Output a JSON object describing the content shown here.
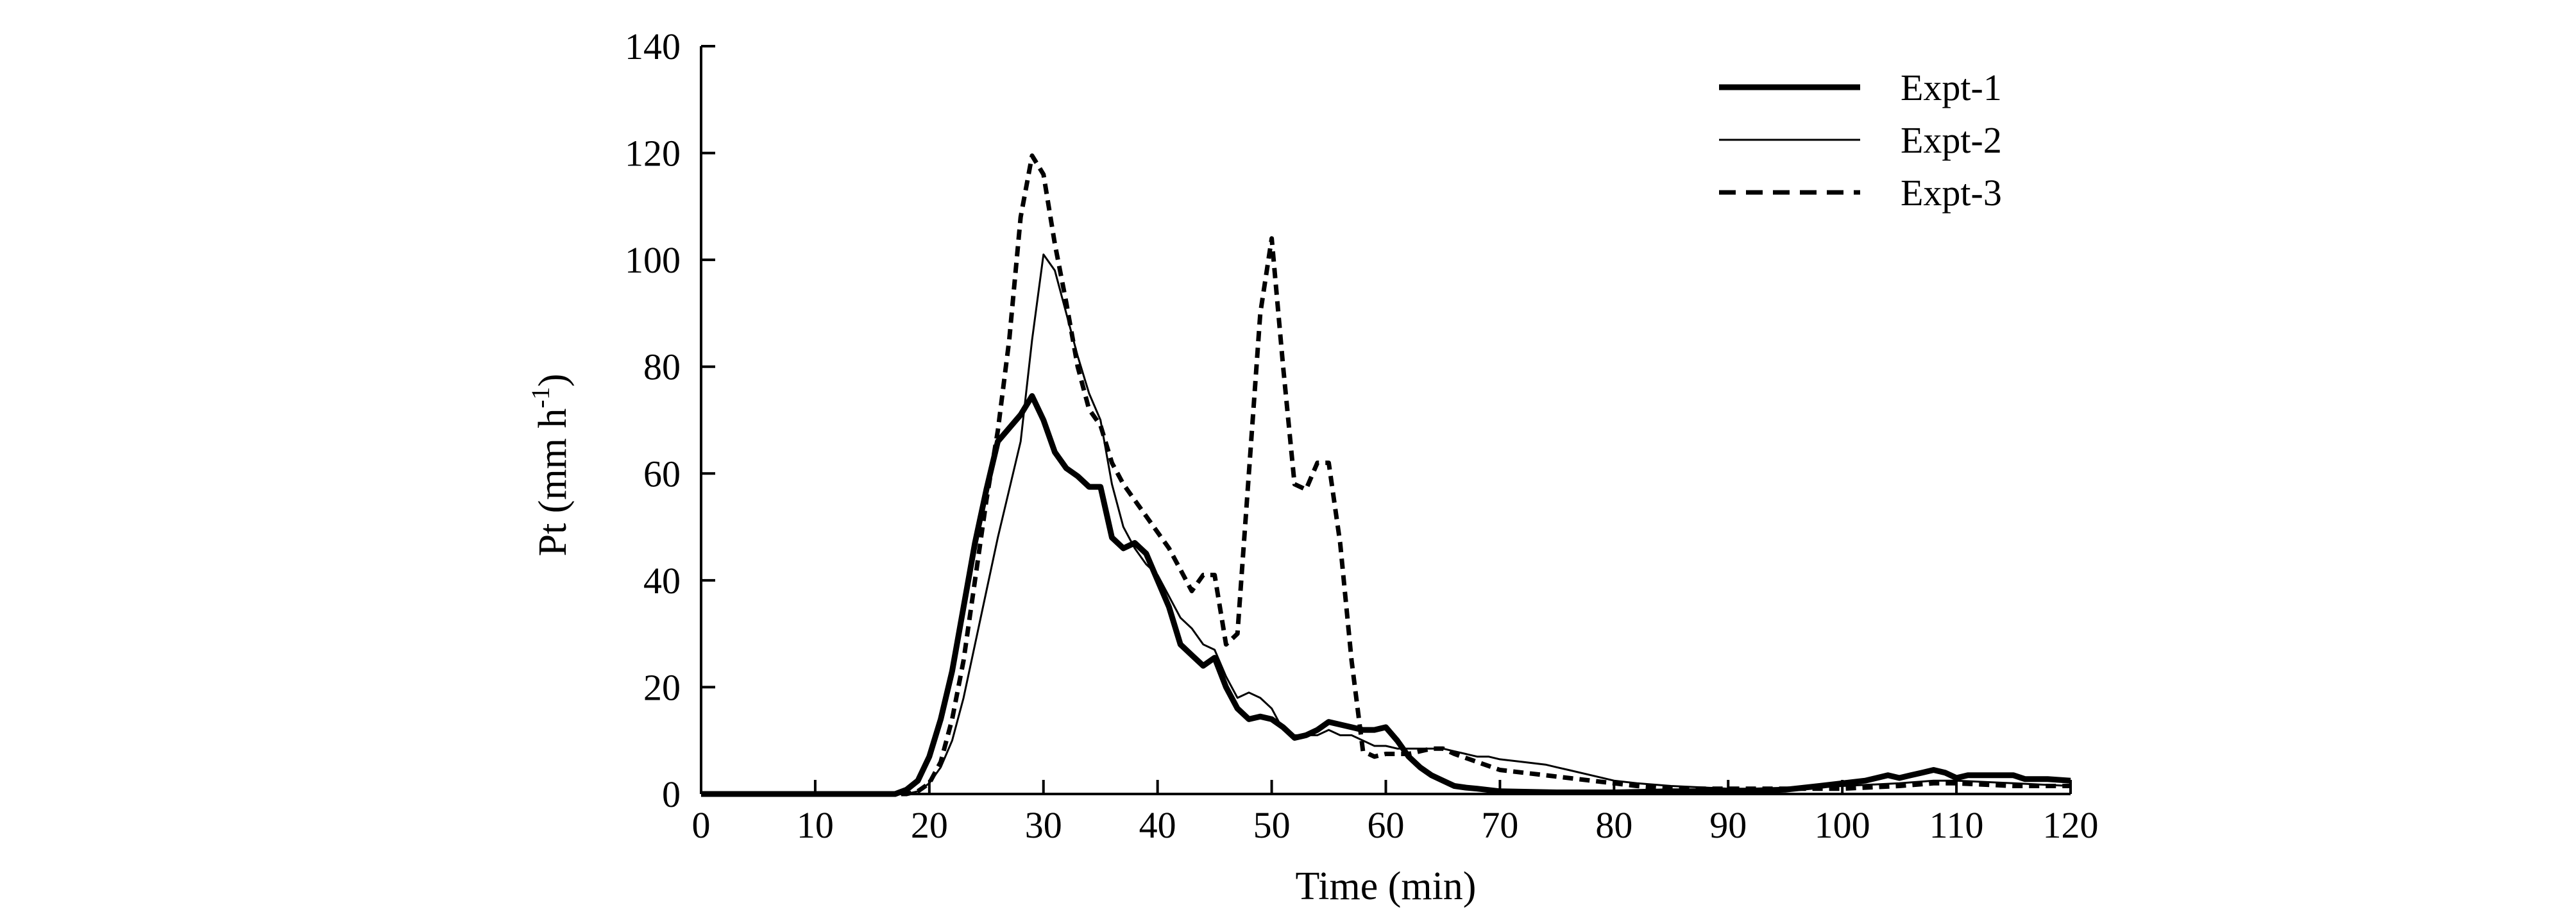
{
  "chart_data": {
    "type": "line",
    "xlabel": "Time (min)",
    "ylabel": {
      "main": "Pt (mm h",
      "sup": "-1",
      "close": ")"
    },
    "xlim": [
      0,
      120
    ],
    "ylim": [
      0,
      140
    ],
    "xticks": [
      "0",
      "10",
      "20",
      "30",
      "40",
      "50",
      "60",
      "70",
      "80",
      "90",
      "100",
      "110",
      "120"
    ],
    "yticks": [
      "0",
      "20",
      "40",
      "60",
      "80",
      "100",
      "120",
      "140"
    ],
    "grid": false,
    "legend_position": "top-right",
    "series": [
      {
        "name": "Expt-1",
        "style": "thick-solid",
        "color": "#000000",
        "points": [
          [
            0,
            0
          ],
          [
            17,
            0
          ],
          [
            18,
            0.8
          ],
          [
            19,
            2.5
          ],
          [
            20,
            7
          ],
          [
            21,
            14
          ],
          [
            22,
            23
          ],
          [
            23,
            35
          ],
          [
            24,
            47
          ],
          [
            25,
            57
          ],
          [
            26,
            66
          ],
          [
            27,
            68.5
          ],
          [
            28,
            71
          ],
          [
            29,
            74.5
          ],
          [
            30,
            70
          ],
          [
            31,
            64
          ],
          [
            32,
            61
          ],
          [
            33,
            59.5
          ],
          [
            34,
            57.5
          ],
          [
            35,
            57.5
          ],
          [
            36,
            48
          ],
          [
            37,
            46
          ],
          [
            38,
            47
          ],
          [
            39,
            45
          ],
          [
            40,
            40
          ],
          [
            41,
            35
          ],
          [
            42,
            28
          ],
          [
            43,
            26
          ],
          [
            44,
            24
          ],
          [
            45,
            25.5
          ],
          [
            46,
            20
          ],
          [
            47,
            16
          ],
          [
            48,
            14
          ],
          [
            49,
            14.5
          ],
          [
            50,
            14
          ],
          [
            51,
            12.5
          ],
          [
            52,
            10.5
          ],
          [
            53,
            11
          ],
          [
            54,
            12
          ],
          [
            55,
            13.5
          ],
          [
            56,
            13
          ],
          [
            57,
            12.5
          ],
          [
            58,
            12
          ],
          [
            59,
            12
          ],
          [
            60,
            12.5
          ],
          [
            61,
            10
          ],
          [
            62,
            7
          ],
          [
            63,
            5
          ],
          [
            64,
            3.5
          ],
          [
            65,
            2.5
          ],
          [
            66,
            1.5
          ],
          [
            67,
            1.2
          ],
          [
            68,
            1
          ],
          [
            70,
            0.5
          ],
          [
            75,
            0.3
          ],
          [
            80,
            0.3
          ],
          [
            85,
            0.5
          ],
          [
            90,
            0.5
          ],
          [
            95,
            0.8
          ],
          [
            98,
            1.5
          ],
          [
            100,
            2
          ],
          [
            102,
            2.5
          ],
          [
            104,
            3.5
          ],
          [
            105,
            3
          ],
          [
            106,
            3.5
          ],
          [
            107,
            4
          ],
          [
            108,
            4.5
          ],
          [
            109,
            4
          ],
          [
            110,
            3
          ],
          [
            111,
            3.5
          ],
          [
            113,
            3.5
          ],
          [
            115,
            3.5
          ],
          [
            116,
            2.8
          ],
          [
            118,
            2.8
          ],
          [
            120,
            2.5
          ]
        ]
      },
      {
        "name": "Expt-2",
        "style": "thin-solid",
        "color": "#000000",
        "points": [
          [
            0,
            0
          ],
          [
            18,
            0
          ],
          [
            19,
            0.5
          ],
          [
            20,
            2
          ],
          [
            21,
            5
          ],
          [
            22,
            10
          ],
          [
            23,
            18
          ],
          [
            24,
            28
          ],
          [
            25,
            38
          ],
          [
            26,
            48
          ],
          [
            27,
            57
          ],
          [
            28,
            66
          ],
          [
            29,
            85
          ],
          [
            30,
            101
          ],
          [
            31,
            98
          ],
          [
            32,
            90
          ],
          [
            33,
            82
          ],
          [
            34,
            75
          ],
          [
            35,
            70
          ],
          [
            36,
            58
          ],
          [
            37,
            50
          ],
          [
            38,
            46
          ],
          [
            39,
            43
          ],
          [
            40,
            41
          ],
          [
            41,
            37
          ],
          [
            42,
            33
          ],
          [
            43,
            31
          ],
          [
            44,
            28
          ],
          [
            45,
            27
          ],
          [
            46,
            22
          ],
          [
            47,
            18
          ],
          [
            48,
            19
          ],
          [
            49,
            18
          ],
          [
            50,
            16
          ],
          [
            51,
            12
          ],
          [
            52,
            11
          ],
          [
            53,
            11
          ],
          [
            54,
            11
          ],
          [
            55,
            12
          ],
          [
            56,
            11
          ],
          [
            57,
            11
          ],
          [
            58,
            10
          ],
          [
            59,
            9
          ],
          [
            60,
            9
          ],
          [
            61,
            8.5
          ],
          [
            62,
            8.5
          ],
          [
            63,
            8.5
          ],
          [
            64,
            8.5
          ],
          [
            65,
            8.5
          ],
          [
            66,
            8
          ],
          [
            67,
            7.5
          ],
          [
            68,
            7
          ],
          [
            69,
            7
          ],
          [
            70,
            6.5
          ],
          [
            72,
            6
          ],
          [
            74,
            5.5
          ],
          [
            75,
            5
          ],
          [
            76,
            4.5
          ],
          [
            78,
            3.5
          ],
          [
            80,
            2.5
          ],
          [
            82,
            2
          ],
          [
            85,
            1.5
          ],
          [
            88,
            1.2
          ],
          [
            90,
            1
          ],
          [
            95,
            1
          ],
          [
            100,
            1.5
          ],
          [
            105,
            2
          ],
          [
            108,
            2.5
          ],
          [
            110,
            2.5
          ],
          [
            115,
            2
          ],
          [
            120,
            1.5
          ]
        ]
      },
      {
        "name": "Expt-3",
        "style": "dashed",
        "color": "#000000",
        "points": [
          [
            0,
            0
          ],
          [
            18,
            0
          ],
          [
            19,
            0.5
          ],
          [
            20,
            2
          ],
          [
            21,
            6
          ],
          [
            22,
            14
          ],
          [
            23,
            25
          ],
          [
            24,
            40
          ],
          [
            25,
            55
          ],
          [
            26,
            68
          ],
          [
            27,
            85
          ],
          [
            28,
            108
          ],
          [
            29,
            119.5
          ],
          [
            30,
            116
          ],
          [
            31,
            103
          ],
          [
            32,
            92
          ],
          [
            33,
            80
          ],
          [
            34,
            72
          ],
          [
            35,
            69
          ],
          [
            36,
            62
          ],
          [
            37,
            58
          ],
          [
            38,
            55
          ],
          [
            39,
            52
          ],
          [
            40,
            49
          ],
          [
            41,
            46
          ],
          [
            42,
            42
          ],
          [
            43,
            38
          ],
          [
            44,
            41
          ],
          [
            45,
            41
          ],
          [
            46,
            28
          ],
          [
            47,
            30
          ],
          [
            48,
            60
          ],
          [
            49,
            90
          ],
          [
            50,
            104
          ],
          [
            51,
            80
          ],
          [
            52,
            58
          ],
          [
            53,
            57
          ],
          [
            54,
            62
          ],
          [
            55,
            62
          ],
          [
            56,
            47
          ],
          [
            57,
            25
          ],
          [
            58,
            8
          ],
          [
            59,
            7
          ],
          [
            60,
            7.5
          ],
          [
            61,
            7.5
          ],
          [
            62,
            7.5
          ],
          [
            63,
            8
          ],
          [
            64,
            8.5
          ],
          [
            65,
            8.5
          ],
          [
            66,
            7.5
          ],
          [
            68,
            6
          ],
          [
            70,
            4.5
          ],
          [
            72,
            4
          ],
          [
            74,
            3.5
          ],
          [
            76,
            3
          ],
          [
            78,
            2.5
          ],
          [
            80,
            2
          ],
          [
            82,
            1.5
          ],
          [
            85,
            1
          ],
          [
            90,
            1
          ],
          [
            95,
            1
          ],
          [
            100,
            1
          ],
          [
            105,
            1.5
          ],
          [
            108,
            2
          ],
          [
            110,
            2
          ],
          [
            115,
            1.5
          ],
          [
            120,
            1.5
          ]
        ]
      }
    ]
  }
}
